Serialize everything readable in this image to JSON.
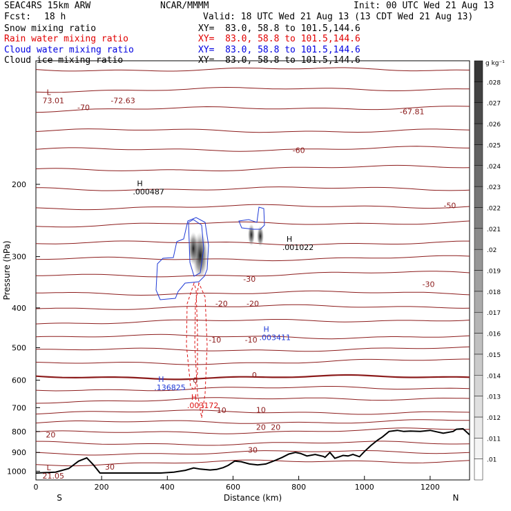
{
  "header": {
    "model": "SEAC4RS 15km ARW",
    "source": "NCAR/MMMM",
    "init": "Init: 00 UTC Wed 21 Aug 13",
    "fcst_label": "Fcst:",
    "fcst_value": "18 h",
    "valid": "Valid: 18 UTC Wed 21 Aug 13 (13 CDT Wed 21 Aug 13)",
    "fields": [
      {
        "name": "Snow mixing ratio",
        "xy": "XY=  83.0, 58.8 to 101.5,144.6",
        "color": "#000000"
      },
      {
        "name": "Rain water mixing ratio",
        "xy": "XY=  83.0, 58.8 to 101.5,144.6",
        "color": "#e00000"
      },
      {
        "name": "Cloud water mixing ratio",
        "xy": "XY=  83.0, 58.8 to 101.5,144.6",
        "color": "#0000e0"
      },
      {
        "name": "Cloud ice mixing ratio",
        "xy": "XY=  83.0, 58.8 to 101.5,144.6",
        "color": "#000000"
      }
    ]
  },
  "chart_data": {
    "type": "cross-section contour",
    "xlabel": "Distance (km)",
    "ylabel": "Pressure (hPa)",
    "xlim": [
      0,
      1320
    ],
    "ylim": [
      1050,
      100
    ],
    "yscale": "log",
    "x_ticks": [
      0,
      200,
      400,
      600,
      800,
      1000,
      1200
    ],
    "y_ticks": [
      200,
      300,
      400,
      500,
      600,
      700,
      800,
      900,
      1000
    ],
    "endpoint_labels": {
      "left": "S",
      "right": "N"
    },
    "colorbar": {
      "unit": "g kg⁻¹",
      "ticks": [
        ".01",
        ".011",
        ".012",
        ".013",
        ".014",
        ".015",
        ".016",
        ".017",
        ".018",
        ".019",
        ".02",
        ".021",
        ".022",
        ".023",
        ".024",
        ".025",
        ".026",
        ".027",
        ".028"
      ]
    },
    "temperature_isotherms": [
      {
        "label": "-70",
        "x": 145,
        "p": 130
      },
      {
        "label": "-72.63",
        "x": 265,
        "p": 125
      },
      {
        "label": "-67.81",
        "x": 1145,
        "p": 133
      },
      {
        "label": "-60",
        "x": 800,
        "p": 165
      },
      {
        "label": "-50",
        "x": 1260,
        "p": 225
      },
      {
        "label": "-30",
        "x": 650,
        "p": 340
      },
      {
        "label": "-30",
        "x": 1195,
        "p": 350
      },
      {
        "label": "-20",
        "x": 565,
        "p": 390
      },
      {
        "label": "-20",
        "x": 660,
        "p": 390
      },
      {
        "label": "-10",
        "x": 545,
        "p": 478
      },
      {
        "label": "-10",
        "x": 655,
        "p": 478
      },
      {
        "label": "0",
        "x": 485,
        "p": 600
      },
      {
        "label": "0",
        "x": 665,
        "p": 583
      },
      {
        "label": "10",
        "x": 565,
        "p": 710
      },
      {
        "label": "10",
        "x": 685,
        "p": 708
      },
      {
        "label": "20",
        "x": 45,
        "p": 815
      },
      {
        "label": "20",
        "x": 685,
        "p": 780
      },
      {
        "label": "20",
        "x": 730,
        "p": 780
      },
      {
        "label": "30",
        "x": 225,
        "p": 975
      },
      {
        "label": "30",
        "x": 660,
        "p": 888
      }
    ],
    "extrema": [
      {
        "kind": "H",
        "value": ".000487",
        "x": 295,
        "p": 205,
        "field": "Snow mixing ratio"
      },
      {
        "kind": "H",
        "value": ".001022",
        "x": 750,
        "p": 280,
        "field": "Snow mixing ratio"
      },
      {
        "kind": "H",
        "value": ".003411",
        "x": 680,
        "p": 465,
        "field": "Cloud water mixing ratio"
      },
      {
        "kind": "H",
        "value": ".136825",
        "x": 360,
        "p": 615,
        "field": "Cloud water mixing ratio"
      },
      {
        "kind": "H",
        "value": ".003172",
        "x": 460,
        "p": 680,
        "field": "Rain water mixing ratio"
      },
      {
        "kind": "L",
        "value": "73.01",
        "x": 20,
        "p": 123,
        "field": "Temperature"
      },
      {
        "kind": "L",
        "value": "21.05",
        "x": 20,
        "p": 1010,
        "field": "Temperature"
      }
    ],
    "terrain": [
      [
        0,
        1010
      ],
      [
        60,
        1005
      ],
      [
        100,
        985
      ],
      [
        130,
        945
      ],
      [
        155,
        928
      ],
      [
        175,
        965
      ],
      [
        195,
        1010
      ],
      [
        240,
        1010
      ],
      [
        380,
        1010
      ],
      [
        420,
        1005
      ],
      [
        455,
        995
      ],
      [
        480,
        982
      ],
      [
        500,
        988
      ],
      [
        530,
        993
      ],
      [
        550,
        990
      ],
      [
        570,
        980
      ],
      [
        585,
        968
      ],
      [
        605,
        945
      ],
      [
        625,
        948
      ],
      [
        650,
        960
      ],
      [
        675,
        965
      ],
      [
        700,
        960
      ],
      [
        730,
        940
      ],
      [
        750,
        925
      ],
      [
        770,
        908
      ],
      [
        790,
        900
      ],
      [
        805,
        905
      ],
      [
        825,
        918
      ],
      [
        850,
        910
      ],
      [
        875,
        920
      ],
      [
        880,
        925
      ],
      [
        895,
        900
      ],
      [
        910,
        930
      ],
      [
        935,
        915
      ],
      [
        950,
        918
      ],
      [
        965,
        910
      ],
      [
        985,
        922
      ],
      [
        1000,
        895
      ],
      [
        1020,
        865
      ],
      [
        1040,
        840
      ],
      [
        1055,
        825
      ],
      [
        1075,
        800
      ],
      [
        1100,
        795
      ],
      [
        1120,
        800
      ],
      [
        1140,
        798
      ],
      [
        1170,
        800
      ],
      [
        1200,
        795
      ],
      [
        1240,
        808
      ],
      [
        1270,
        800
      ],
      [
        1280,
        790
      ],
      [
        1300,
        788
      ],
      [
        1320,
        815
      ]
    ],
    "colors": {
      "isotherm": "#8b1a1a",
      "terrain": "#000000",
      "cloud_water": "#1f3ad6",
      "rain": "#dd1111",
      "snow_shade": "#555555"
    }
  }
}
